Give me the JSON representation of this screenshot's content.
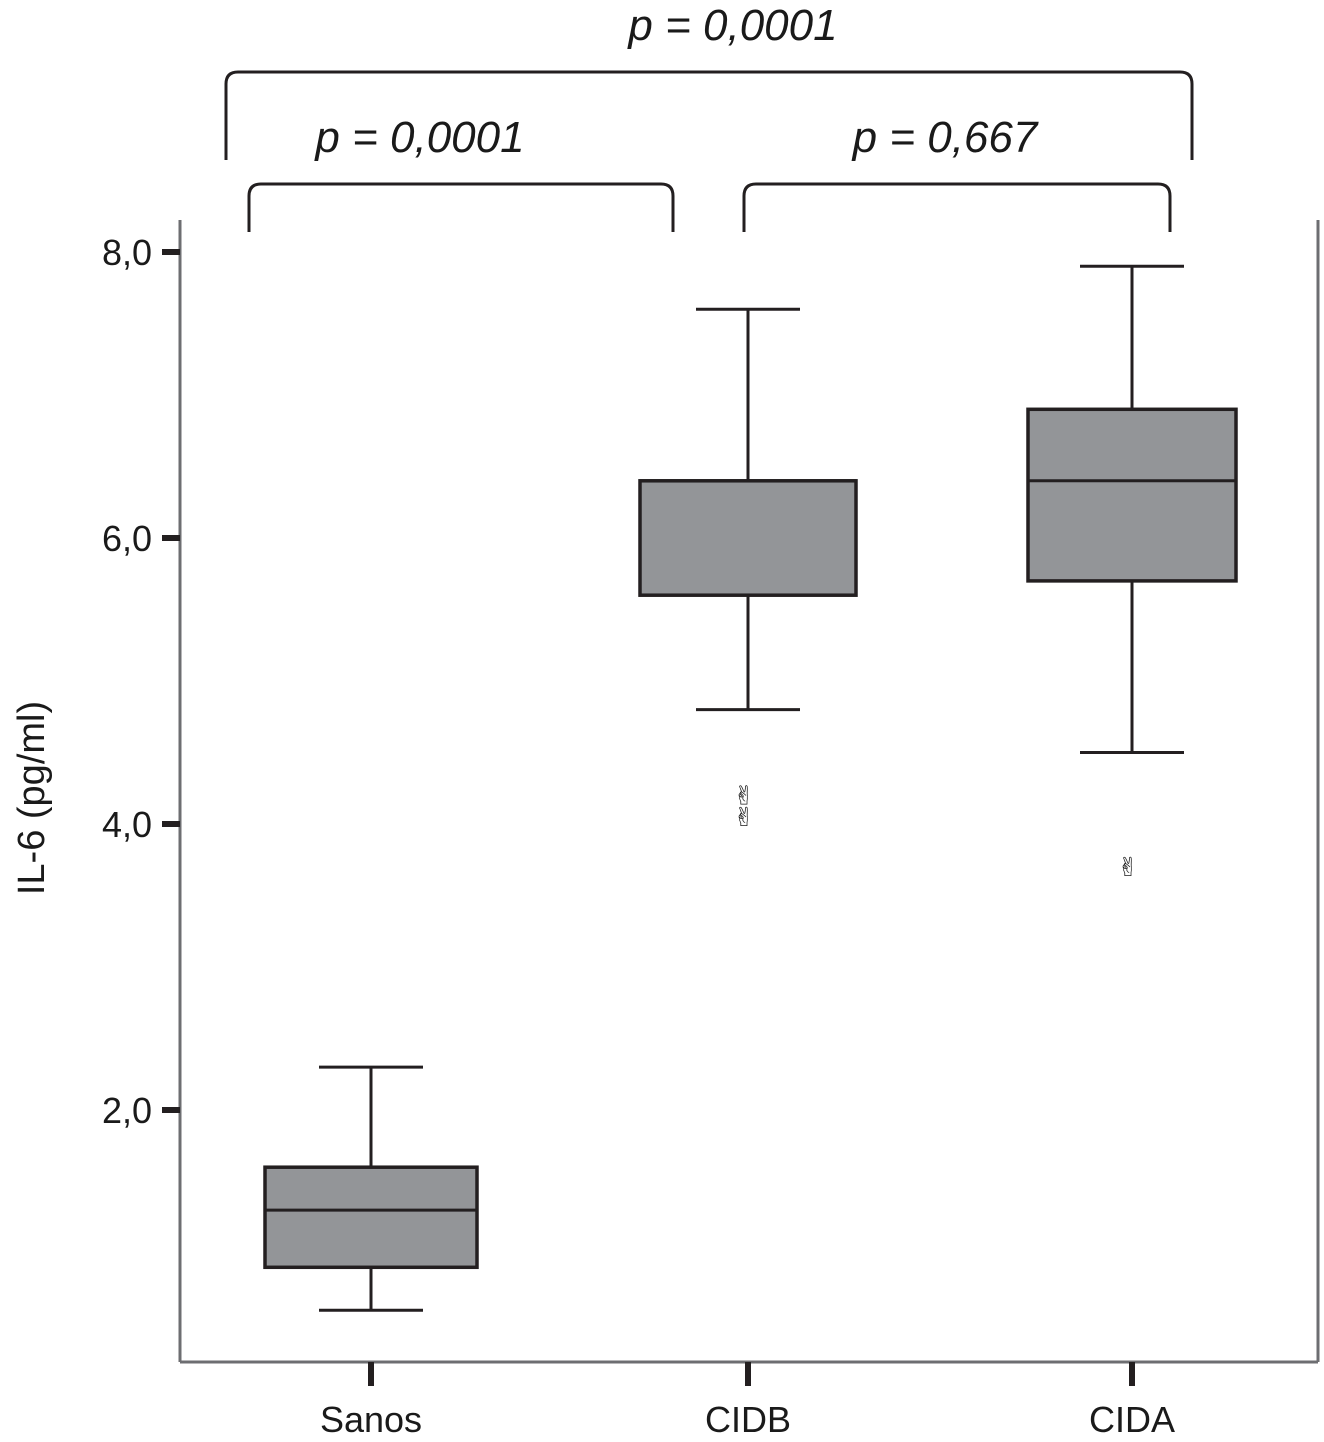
{
  "chart_data": {
    "type": "box",
    "title": "",
    "xlabel": "",
    "ylabel": "IL-6 (pg/ml)",
    "ylim": [
      0.0,
      8.2
    ],
    "yticks": [
      2.0,
      4.0,
      6.0,
      8.0
    ],
    "ytick_labels": [
      "2,0",
      "4,0",
      "6,0",
      "8,0"
    ],
    "categories": [
      "Sanos",
      "CIDB",
      "CIDA"
    ],
    "boxes": [
      {
        "category": "Sanos",
        "whisker_low": 0.6,
        "q1": 0.9,
        "median": 1.3,
        "q3": 1.6,
        "whisker_high": 2.3,
        "outliers": []
      },
      {
        "category": "CIDB",
        "whisker_low": 4.8,
        "q1": 5.6,
        "median": 6.4,
        "q3": 6.4,
        "whisker_high": 7.6,
        "outliers": [
          4.2,
          4.05
        ]
      },
      {
        "category": "CIDA",
        "whisker_low": 4.5,
        "q1": 5.7,
        "median": 6.4,
        "q3": 6.9,
        "whisker_high": 7.9,
        "outliers": [
          3.7
        ]
      }
    ],
    "comparisons": [
      {
        "groups": [
          "Sanos",
          "CIDA"
        ],
        "label": "p = 0,0001"
      },
      {
        "groups": [
          "Sanos",
          "CIDB"
        ],
        "label": "p = 0,0001"
      },
      {
        "groups": [
          "CIDB",
          "CIDA"
        ],
        "label": "p = 0,667"
      }
    ],
    "box_color": "#939598",
    "line_color": "#231f20",
    "axis_color": "#6d6e71",
    "outlier_symbol": "✌",
    "grid": false
  }
}
